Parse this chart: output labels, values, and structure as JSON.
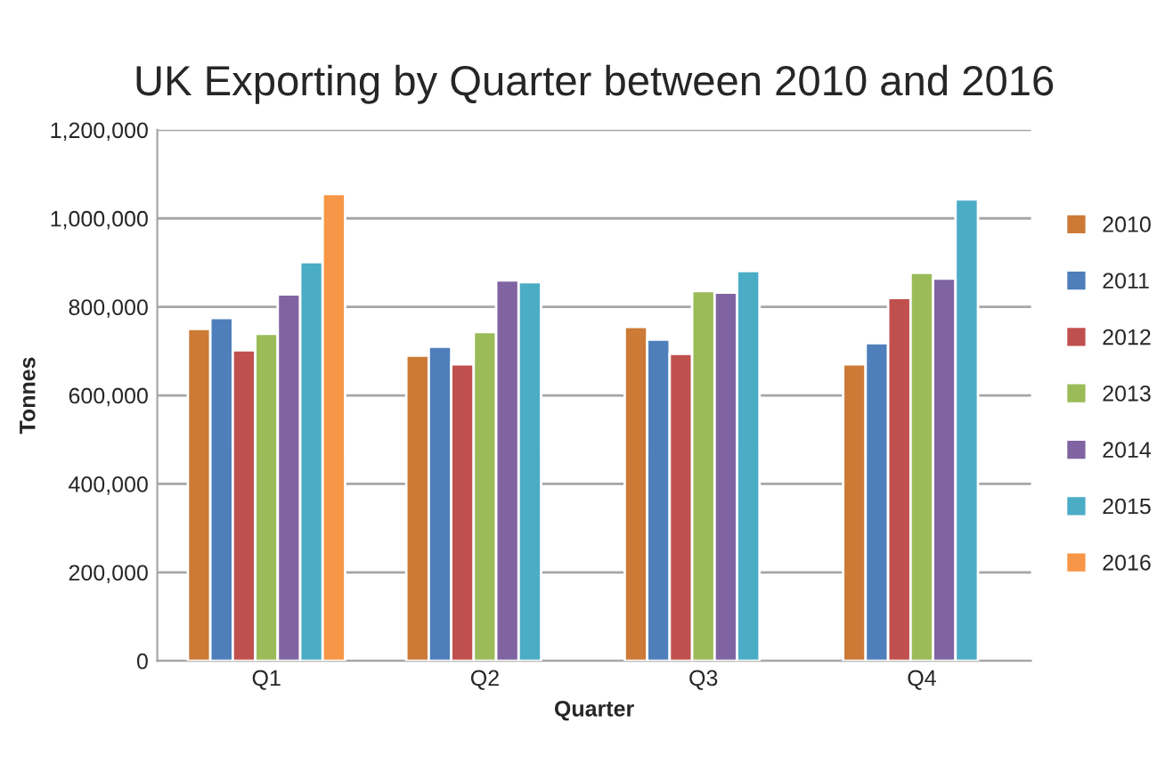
{
  "chart_data": {
    "type": "bar",
    "title": "UK Exporting by Quarter between 2010 and 2016",
    "xlabel": "Quarter",
    "ylabel": "Tonnes",
    "categories": [
      "Q1",
      "Q2",
      "Q3",
      "Q4"
    ],
    "series": [
      {
        "name": "2010",
        "color": "#cc7a36",
        "values": [
          750000,
          690000,
          755000,
          670000
        ]
      },
      {
        "name": "2011",
        "color": "#4e7fbb",
        "values": [
          775000,
          710000,
          726000,
          718000
        ]
      },
      {
        "name": "2012",
        "color": "#c0504d",
        "values": [
          702000,
          670000,
          694000,
          820000
        ]
      },
      {
        "name": "2013",
        "color": "#9bbb59",
        "values": [
          739000,
          743000,
          836000,
          877000
        ]
      },
      {
        "name": "2014",
        "color": "#8064a2",
        "values": [
          828000,
          860000,
          832000,
          864000
        ]
      },
      {
        "name": "2015",
        "color": "#4bacc6",
        "values": [
          901000,
          856000,
          881000,
          1043000
        ]
      },
      {
        "name": "2016",
        "color": "#f79646",
        "values": [
          1055000,
          null,
          null,
          null
        ]
      }
    ],
    "ylim": [
      0,
      1200000
    ],
    "yticks": [
      {
        "value": 0,
        "label": "0"
      },
      {
        "value": 200000,
        "label": "200,000"
      },
      {
        "value": 400000,
        "label": "400,000"
      },
      {
        "value": 600000,
        "label": "600,000"
      },
      {
        "value": 800000,
        "label": "800,000"
      },
      {
        "value": 1000000,
        "label": "1,000,000"
      },
      {
        "value": 1200000,
        "label": "1,200,000"
      }
    ],
    "grid": "y",
    "legend": "right"
  }
}
